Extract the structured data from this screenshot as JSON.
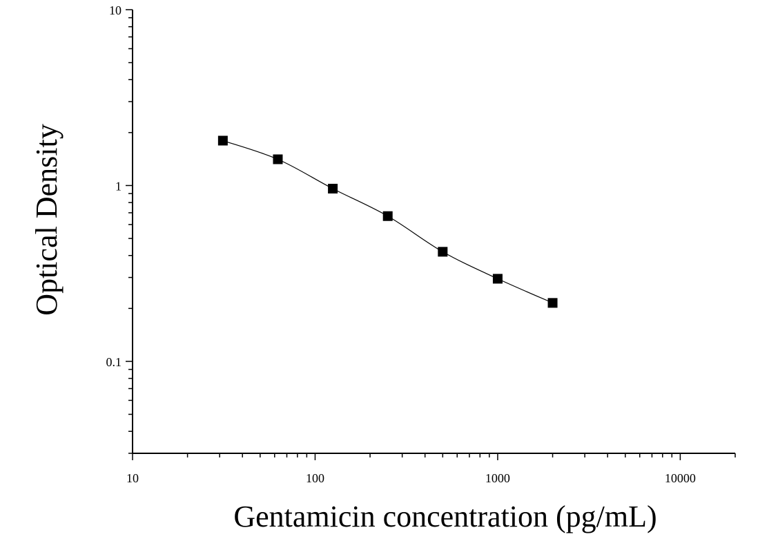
{
  "chart_data": {
    "type": "scatter",
    "xlabel": "Gentamicin concentration (pg/mL)",
    "ylabel": "Optical Density",
    "x_scale": "log",
    "y_scale": "log",
    "xlim": [
      10,
      20000
    ],
    "ylim": [
      0.03,
      10
    ],
    "x_ticks": [
      "10",
      "100",
      "1000",
      "10000"
    ],
    "y_ticks": [
      "0.1",
      "1",
      "10"
    ],
    "grid": false,
    "series": [
      {
        "marker": "square",
        "fit_curve": true,
        "x": [
          31.25,
          62.5,
          125,
          250,
          500,
          1000,
          2000
        ],
        "y": [
          1.8,
          1.41,
          0.96,
          0.67,
          0.42,
          0.295,
          0.215
        ]
      }
    ],
    "colors": {
      "marker": "#000000",
      "curve": "#000000",
      "axis": "#000000"
    }
  }
}
